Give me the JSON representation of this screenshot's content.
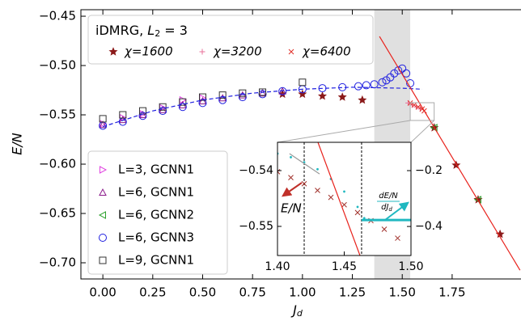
{
  "chart_data": [
    {
      "type": "scatter",
      "xlabel": [
        "J",
        "d"
      ],
      "ylabel": "E/N",
      "xlim": [
        -0.11,
        2.095
      ],
      "ylim": [
        -0.7164,
        -0.4434
      ],
      "xticks": [
        {
          "value": 0,
          "label": "0.00"
        },
        {
          "value": 0.25,
          "label": "0.25"
        },
        {
          "value": 0.5,
          "label": "0.50"
        },
        {
          "value": 0.75,
          "label": "0.75"
        },
        {
          "value": 1,
          "label": "1.00"
        },
        {
          "value": 1.25,
          "label": "1.25"
        },
        {
          "value": 1.5,
          "label": "1.50"
        },
        {
          "value": 1.75,
          "label": "1.75"
        }
      ],
      "yticks": [
        {
          "value": -0.45,
          "label": "−0.45"
        },
        {
          "value": -0.5,
          "label": "−0.50"
        },
        {
          "value": -0.55,
          "label": "−0.55"
        },
        {
          "value": -0.6,
          "label": "−0.60"
        },
        {
          "value": -0.65,
          "label": "−0.65"
        },
        {
          "value": -0.7,
          "label": "−0.70"
        }
      ],
      "shade": [
        1.36,
        1.54
      ],
      "zoom_box": {
        "x": [
          1.54,
          1.66
        ],
        "y": [
          -0.5557,
          -0.5377
        ]
      },
      "legend_title": [
        "iDMRG, ",
        "L",
        "2",
        " = 3"
      ],
      "series": [
        {
          "name": "χ=1600",
          "color": "#8b1a1a",
          "marker": "star",
          "legend": "upper",
          "x": [
            0.9,
            1.0,
            1.1,
            1.2,
            1.3,
            1.66,
            1.77,
            1.88,
            1.99
          ],
          "values": [
            -0.529,
            -0.529,
            -0.531,
            -0.532,
            -0.535,
            -0.563,
            -0.601,
            -0.636,
            -0.671
          ]
        },
        {
          "name": "χ=3200",
          "color": "#e8709a",
          "marker": "plus",
          "legend": "upper",
          "x": [
            1.53,
            1.55,
            1.57,
            1.59
          ],
          "values": [
            -0.538,
            -0.54,
            -0.542,
            -0.544
          ]
        },
        {
          "name": "χ=6400",
          "color": "#e0302a",
          "marker": "x",
          "legend": "upper",
          "x": [
            1.54,
            1.56,
            1.58,
            1.6,
            1.61
          ],
          "values": [
            -0.538,
            -0.54,
            -0.542,
            -0.544,
            -0.546
          ]
        },
        {
          "name": "L=3, GCNN1",
          "color": "#e040e0",
          "marker": "tri-right",
          "legend": "lower",
          "x": [
            0,
            0.1,
            0.2,
            0.3,
            0.4,
            0.5
          ],
          "values": [
            -0.559,
            -0.553,
            -0.549,
            -0.543,
            -0.535,
            -0.533
          ]
        },
        {
          "name": "L=6, GCNN1",
          "color": "#8b1a8b",
          "marker": "tri-up",
          "legend": "lower",
          "x": [
            0,
            0.1,
            0.2,
            0.3,
            0.4,
            0.5,
            0.6,
            0.7,
            0.8,
            0.9
          ],
          "values": [
            -0.56,
            -0.555,
            -0.55,
            -0.545,
            -0.54,
            -0.536,
            -0.533,
            -0.53,
            -0.528,
            -0.526
          ]
        },
        {
          "name": "L=6, GCNN2",
          "color": "#2ca02c",
          "marker": "tri-left",
          "legend": "lower",
          "x": [
            1.66,
            1.88
          ],
          "values": [
            -0.563,
            -0.636
          ]
        },
        {
          "name": "L=6, GCNN3",
          "color": "#1f1fe0",
          "marker": "circle",
          "legend": "lower",
          "x": [
            0,
            0.1,
            0.2,
            0.3,
            0.4,
            0.5,
            0.6,
            0.7,
            0.8,
            0.9,
            1.0,
            1.1,
            1.2,
            1.28,
            1.32,
            1.36,
            1.4,
            1.42,
            1.44,
            1.46,
            1.48,
            1.5,
            1.52,
            1.54
          ],
          "values": [
            -0.561,
            -0.557,
            -0.551,
            -0.546,
            -0.542,
            -0.538,
            -0.535,
            -0.532,
            -0.529,
            -0.526,
            -0.524,
            -0.523,
            -0.522,
            -0.521,
            -0.52,
            -0.519,
            -0.517,
            -0.515,
            -0.512,
            -0.508,
            -0.505,
            -0.503,
            -0.508,
            -0.518
          ]
        },
        {
          "name": "L=9, GCNN1",
          "color": "#333333",
          "marker": "square",
          "legend": "lower",
          "x": [
            0,
            0.1,
            0.2,
            0.3,
            0.4,
            0.5,
            0.6,
            0.7,
            0.8,
            1.0
          ],
          "values": [
            -0.554,
            -0.55,
            -0.546,
            -0.542,
            -0.537,
            -0.532,
            -0.53,
            -0.528,
            -0.527,
            -0.517
          ]
        },
        {
          "color": "#1f1fe0",
          "line": "dashed",
          "x": [
            0,
            0.25,
            0.5,
            0.75,
            1.0,
            1.25,
            1.5,
            1.6
          ],
          "values": [
            -0.562,
            -0.546,
            -0.535,
            -0.528,
            -0.524,
            -0.522,
            -0.523,
            -0.524
          ]
        },
        {
          "color": "#e8221c",
          "line": "solid",
          "x": [
            1.386,
            2.09
          ],
          "values": [
            -0.4705,
            -0.7075
          ]
        }
      ]
    },
    {
      "type": "line",
      "xlim": [
        1.4,
        1.5
      ],
      "ylim": [
        -0.55522,
        -0.53493
      ],
      "y2lim": [
        -0.504,
        -0.0986
      ],
      "xticks": [
        {
          "value": 1.4,
          "label": "1.40"
        },
        {
          "value": 1.45,
          "label": "1.45"
        },
        {
          "value": 1.5,
          "label": "1.50"
        }
      ],
      "yticks": [
        {
          "value": -0.54,
          "label": "−0.54"
        },
        {
          "value": -0.55,
          "label": "−0.55"
        }
      ],
      "y2ticks": [
        {
          "value": -0.2,
          "label": "−0.2"
        },
        {
          "value": -0.4,
          "label": "−0.4"
        }
      ],
      "vlines": [
        1.42,
        1.463
      ],
      "annotations": [
        {
          "text": [
            "E/N"
          ],
          "color": "#c0302a"
        },
        {
          "text": [
            "dE/N",
            "dJ",
            "d"
          ],
          "color": "#20b8c0"
        }
      ],
      "series": [
        {
          "color": "#a0302a",
          "marker": "x",
          "axis": "y",
          "x": [
            1.4,
            1.41,
            1.42,
            1.43,
            1.44,
            1.45,
            1.46,
            1.47,
            1.48,
            1.49
          ],
          "values": [
            -0.5402,
            -0.54125,
            -0.54236,
            -0.54355,
            -0.5448,
            -0.54612,
            -0.54752,
            -0.54898,
            -0.55051,
            -0.55211
          ]
        },
        {
          "color": "#20b8c0",
          "marker": "dot",
          "axis": "y2",
          "x": [
            1.4,
            1.41,
            1.42,
            1.43,
            1.44,
            1.45,
            1.46,
            1.465
          ],
          "values": [
            -0.139,
            -0.152,
            -0.17,
            -0.195,
            -0.23,
            -0.275,
            -0.33,
            -0.37
          ]
        },
        {
          "color": "#20b8c0",
          "line": "thick",
          "axis": "y2",
          "x": [
            1.463,
            1.5
          ],
          "values": [
            -0.377,
            -0.377
          ]
        },
        {
          "color": "#e8221c",
          "line": "solid",
          "axis": "y",
          "x": [
            1.4303,
            1.4618
          ],
          "values": [
            -0.53493,
            -0.55522
          ]
        },
        {
          "color": "#999999",
          "line": "solid",
          "axis": "y",
          "x": [
            1.409,
            1.4315
          ],
          "values": [
            -0.53696,
            -0.5406
          ]
        }
      ]
    }
  ]
}
